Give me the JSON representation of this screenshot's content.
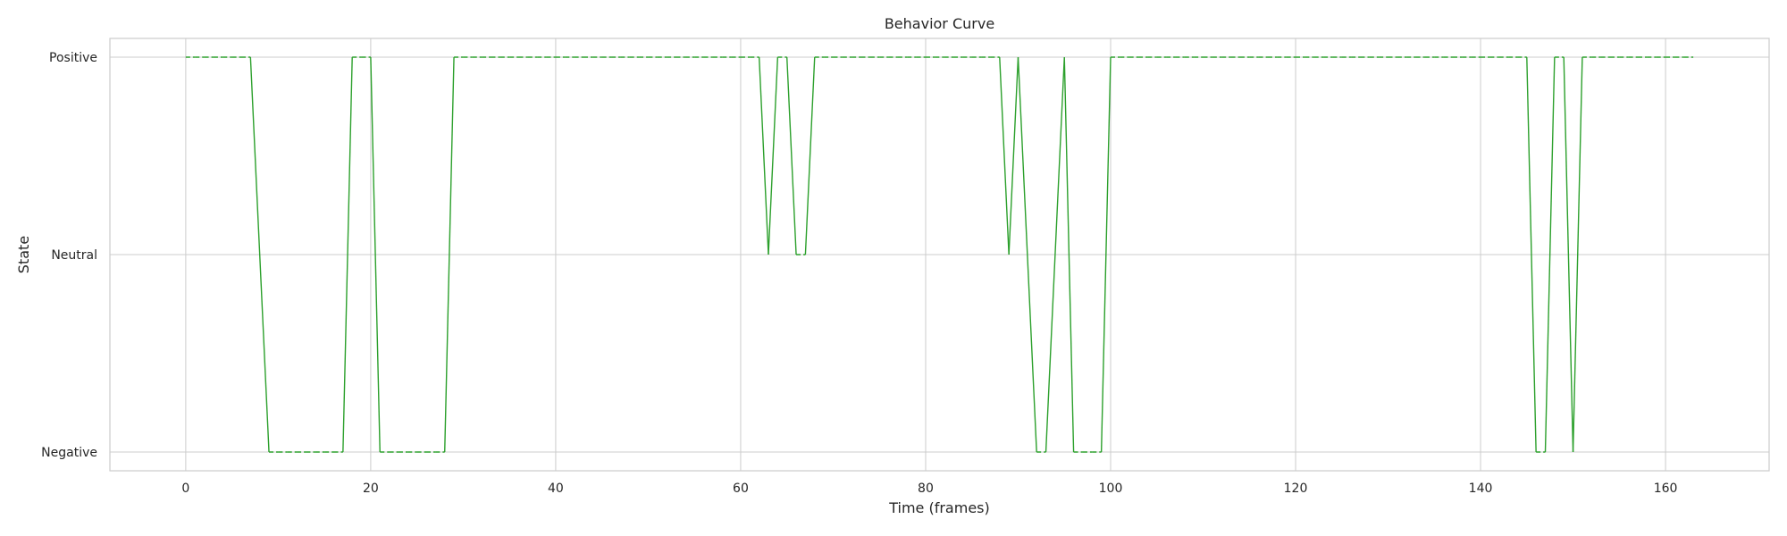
{
  "chart_data": {
    "type": "line",
    "title": "Behavior Curve",
    "xlabel": "Time (frames)",
    "ylabel": "State",
    "xlim": [
      -8.2,
      171.2
    ],
    "xticks": [
      0,
      20,
      40,
      60,
      80,
      100,
      120,
      140,
      160
    ],
    "y_categories": [
      "Negative",
      "Neutral",
      "Positive"
    ],
    "grid": true,
    "legend": "none",
    "series": [
      {
        "color": "#2ca02c",
        "line_style": "solid when the state changes, dashed while it holds",
        "x": [
          0,
          1,
          2,
          3,
          4,
          5,
          6,
          7,
          8,
          9,
          10,
          11,
          12,
          13,
          14,
          15,
          16,
          17,
          18,
          19,
          20,
          21,
          22,
          23,
          24,
          25,
          26,
          27,
          28,
          29,
          30,
          31,
          32,
          33,
          34,
          35,
          36,
          37,
          38,
          39,
          40,
          41,
          42,
          43,
          44,
          45,
          46,
          47,
          48,
          49,
          50,
          51,
          52,
          53,
          54,
          55,
          56,
          57,
          58,
          59,
          60,
          61,
          62,
          63,
          64,
          65,
          66,
          67,
          68,
          69,
          70,
          71,
          72,
          73,
          74,
          75,
          76,
          77,
          78,
          79,
          80,
          81,
          82,
          83,
          84,
          85,
          86,
          87,
          88,
          89,
          90,
          91,
          92,
          93,
          94,
          95,
          96,
          97,
          98,
          99,
          100,
          101,
          102,
          103,
          104,
          105,
          106,
          107,
          108,
          109,
          110,
          111,
          112,
          113,
          114,
          115,
          116,
          117,
          118,
          119,
          120,
          121,
          122,
          123,
          124,
          125,
          126,
          127,
          128,
          129,
          130,
          131,
          132,
          133,
          134,
          135,
          136,
          137,
          138,
          139,
          140,
          141,
          142,
          143,
          144,
          145,
          146,
          147,
          148,
          149,
          150,
          151,
          152,
          153,
          154,
          155,
          156,
          157,
          158,
          159,
          160,
          161,
          162,
          163
        ],
        "y": [
          "Positive",
          "Positive",
          "Positive",
          "Positive",
          "Positive",
          "Positive",
          "Positive",
          "Positive",
          "Neutral",
          "Negative",
          "Negative",
          "Negative",
          "Negative",
          "Negative",
          "Negative",
          "Negative",
          "Negative",
          "Negative",
          "Positive",
          "Positive",
          "Positive",
          "Negative",
          "Negative",
          "Negative",
          "Negative",
          "Negative",
          "Negative",
          "Negative",
          "Negative",
          "Positive",
          "Positive",
          "Positive",
          "Positive",
          "Positive",
          "Positive",
          "Positive",
          "Positive",
          "Positive",
          "Positive",
          "Positive",
          "Positive",
          "Positive",
          "Positive",
          "Positive",
          "Positive",
          "Positive",
          "Positive",
          "Positive",
          "Positive",
          "Positive",
          "Positive",
          "Positive",
          "Positive",
          "Positive",
          "Positive",
          "Positive",
          "Positive",
          "Positive",
          "Positive",
          "Positive",
          "Positive",
          "Positive",
          "Positive",
          "Neutral",
          "Positive",
          "Positive",
          "Neutral",
          "Neutral",
          "Positive",
          "Positive",
          "Positive",
          "Positive",
          "Positive",
          "Positive",
          "Positive",
          "Positive",
          "Positive",
          "Positive",
          "Positive",
          "Positive",
          "Positive",
          "Positive",
          "Positive",
          "Positive",
          "Positive",
          "Positive",
          "Positive",
          "Positive",
          "Positive",
          "Neutral",
          "Positive",
          "Neutral",
          "Negative",
          "Negative",
          "Neutral",
          "Positive",
          "Negative",
          "Negative",
          "Negative",
          "Negative",
          "Positive",
          "Positive",
          "Positive",
          "Positive",
          "Positive",
          "Positive",
          "Positive",
          "Positive",
          "Positive",
          "Positive",
          "Positive",
          "Positive",
          "Positive",
          "Positive",
          "Positive",
          "Positive",
          "Positive",
          "Positive",
          "Positive",
          "Positive",
          "Positive",
          "Positive",
          "Positive",
          "Positive",
          "Positive",
          "Positive",
          "Positive",
          "Positive",
          "Positive",
          "Positive",
          "Positive",
          "Positive",
          "Positive",
          "Positive",
          "Positive",
          "Positive",
          "Positive",
          "Positive",
          "Positive",
          "Positive",
          "Positive",
          "Positive",
          "Positive",
          "Positive",
          "Positive",
          "Positive",
          "Negative",
          "Negative",
          "Positive",
          "Positive",
          "Negative",
          "Positive",
          "Positive",
          "Positive",
          "Positive",
          "Positive",
          "Positive",
          "Positive",
          "Positive",
          "Positive",
          "Positive",
          "Positive",
          "Positive",
          "Positive"
        ]
      }
    ]
  }
}
